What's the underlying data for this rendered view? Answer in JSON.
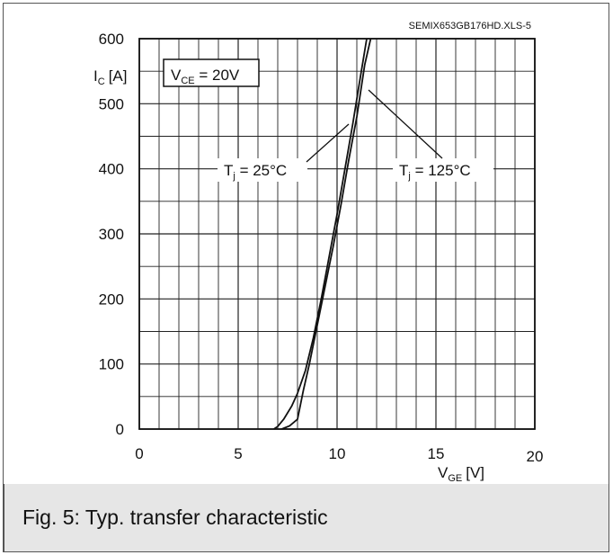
{
  "caption": "Fig. 5: Typ. transfer characteristic",
  "chart_data": {
    "type": "line",
    "file_id": "SEMIX653GB176HD.XLS-5",
    "ylabel": {
      "main": "I",
      "sub": "C",
      "unit": "[A]"
    },
    "xlabel": {
      "main": "V",
      "sub": "GE",
      "unit": "[V]"
    },
    "xlim": [
      0,
      20
    ],
    "ylim": [
      0,
      600
    ],
    "x_ticks": [
      0,
      5,
      10,
      15,
      20
    ],
    "y_ticks": [
      0,
      100,
      200,
      300,
      400,
      500,
      600
    ],
    "grid": true,
    "condition": {
      "main": "V",
      "sub": "CE",
      "rest": " = 20V"
    },
    "series": [
      {
        "name": "T_j = 25°C",
        "label": {
          "main": "T",
          "sub": "j",
          "rest": " = 25°C"
        },
        "x": [
          6.8,
          7.0,
          7.3,
          7.7,
          8.0,
          8.4,
          8.8,
          9.2,
          9.6,
          10.0,
          10.4,
          10.8,
          11.2,
          11.5
        ],
        "y": [
          0,
          4,
          15,
          35,
          55,
          90,
          140,
          200,
          265,
          330,
          400,
          470,
          545,
          600
        ]
      },
      {
        "name": "T_j = 125°C",
        "label": {
          "main": "T",
          "sub": "j",
          "rest": " = 125°C"
        },
        "x": [
          7.2,
          7.6,
          8.0,
          8.3,
          8.6,
          9.0,
          9.4,
          9.8,
          10.2,
          10.6,
          11.0,
          11.4,
          11.7
        ],
        "y": [
          0,
          5,
          15,
          60,
          100,
          160,
          220,
          280,
          345,
          415,
          480,
          560,
          600
        ]
      }
    ]
  }
}
